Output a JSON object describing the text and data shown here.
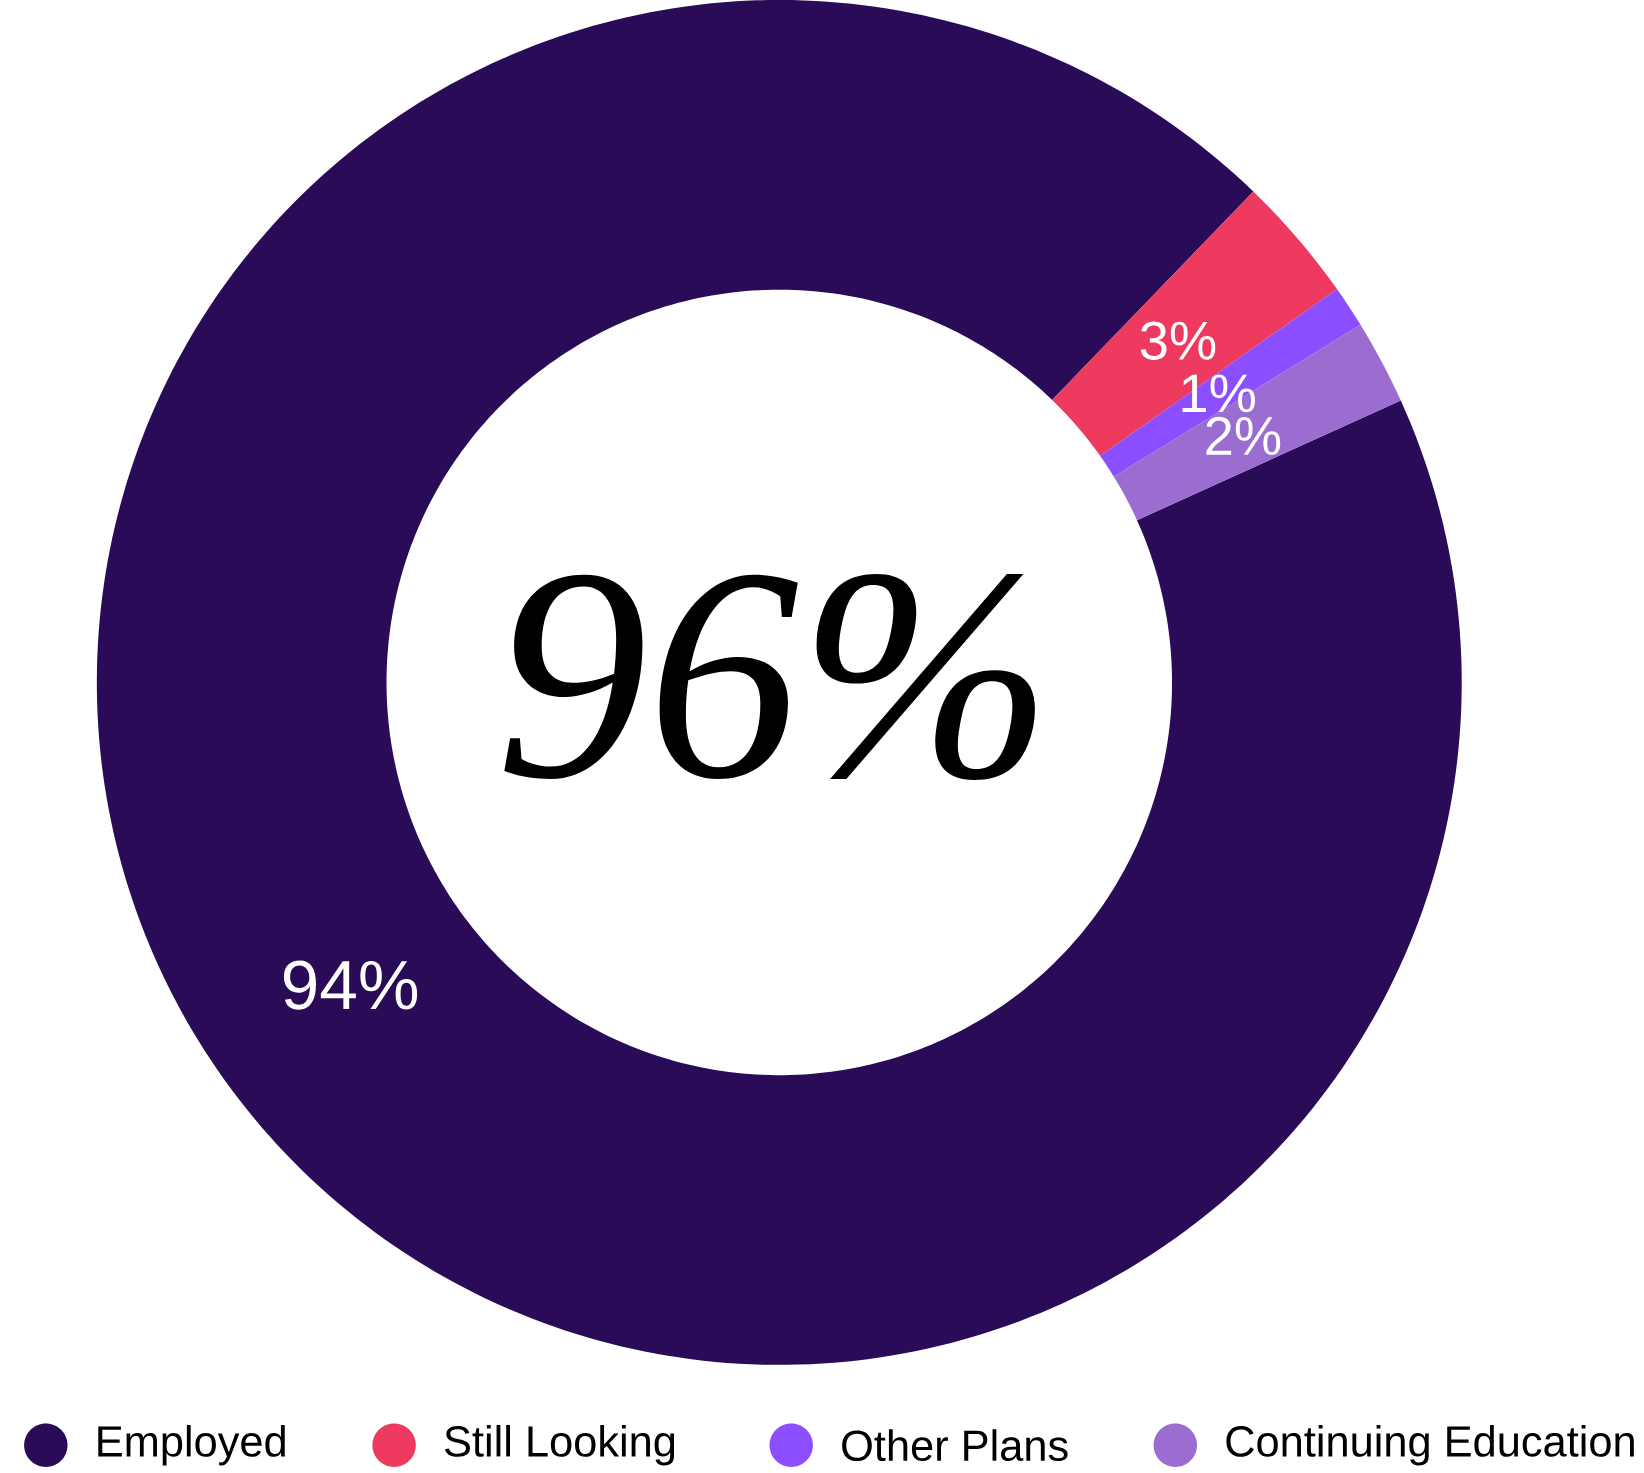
{
  "chart_data": {
    "type": "donut",
    "categories": [
      "Employed",
      "Still Looking",
      "Other Plans",
      "Continuing Education"
    ],
    "values": [
      94,
      3,
      1,
      2
    ],
    "colors": [
      "#2a0b57",
      "#ee3a5e",
      "#8b4fff",
      "#9b6dd0"
    ],
    "value_labels": [
      "94%",
      "3%",
      "1%",
      "2%"
    ],
    "legend": "bottom",
    "annotations": [
      "96%"
    ]
  }
}
